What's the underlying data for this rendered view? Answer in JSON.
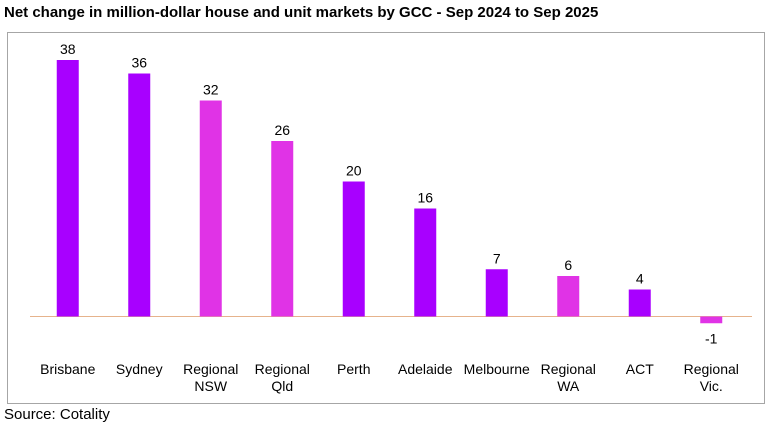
{
  "title": "Net change in million-dollar house and unit markets by GCC - Sep 2024 to Sep 2025",
  "source": "Source: Cotality",
  "colors": {
    "purple": "#a800ff",
    "magenta": "#e033e6",
    "baseline": "#e6b38c"
  },
  "chart_data": {
    "type": "bar",
    "title": "Net change in million-dollar house and unit markets by GCC - Sep 2024 to Sep 2025",
    "categories": [
      [
        "Brisbane"
      ],
      [
        "Sydney"
      ],
      [
        "Regional",
        "NSW"
      ],
      [
        "Regional",
        "Qld"
      ],
      [
        "Perth"
      ],
      [
        "Adelaide"
      ],
      [
        "Melbourne"
      ],
      [
        "Regional",
        "WA"
      ],
      [
        "ACT"
      ],
      [
        "Regional",
        "Vic."
      ]
    ],
    "values": [
      38,
      36,
      32,
      26,
      20,
      16,
      7,
      6,
      4,
      -1
    ],
    "bar_colors": [
      "#a800ff",
      "#a800ff",
      "#e033e6",
      "#e033e6",
      "#a800ff",
      "#a800ff",
      "#a800ff",
      "#e033e6",
      "#a800ff",
      "#e033e6"
    ],
    "xlabel": "",
    "ylabel": "",
    "grid": false,
    "legend": "none"
  }
}
